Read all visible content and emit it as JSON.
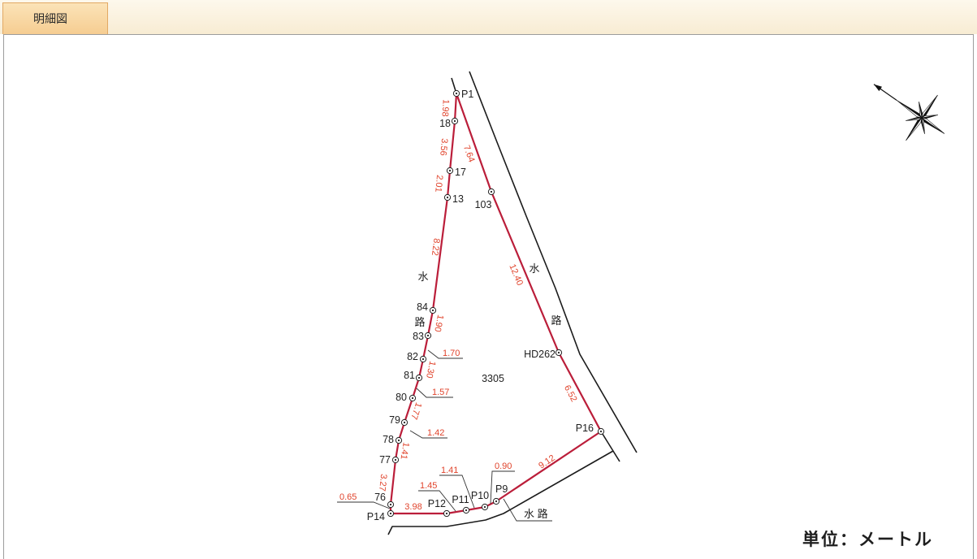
{
  "tab": {
    "label": "明細図"
  },
  "map": {
    "parcel_number": "3305",
    "points": [
      "P1",
      "18",
      "17",
      "13",
      "84",
      "83",
      "82",
      "81",
      "80",
      "79",
      "78",
      "77",
      "76",
      "P14",
      "P12",
      "P11",
      "P10",
      "P9",
      "P16",
      "HD262",
      "103"
    ],
    "distances": [
      "1.98",
      "3.56",
      "2.01",
      "8.22",
      "1.90",
      "1.70",
      "1.30",
      "1.57",
      "1.77",
      "1.42",
      "1.41",
      "3.27",
      "0.65",
      "3.98",
      "1.45",
      "1.41",
      "0.90",
      "9.12",
      "6.52",
      "12.40",
      "7.64"
    ],
    "waterway_labels": {
      "west_top": "水",
      "west_bottom": "路",
      "east_top": "水",
      "east_bottom": "路",
      "south": "水 路"
    },
    "unit_label": "単位：メートル"
  },
  "colors": {
    "boundary_line": "#bb1e3a",
    "distance_text": "#e0432b",
    "outline": "#1b1b1b",
    "tab": "#f6cd92",
    "tab_light": "#fbe3b8"
  },
  "icons": {
    "compass": "compass-rose-icon",
    "point_marker": "survey-point-icon"
  }
}
